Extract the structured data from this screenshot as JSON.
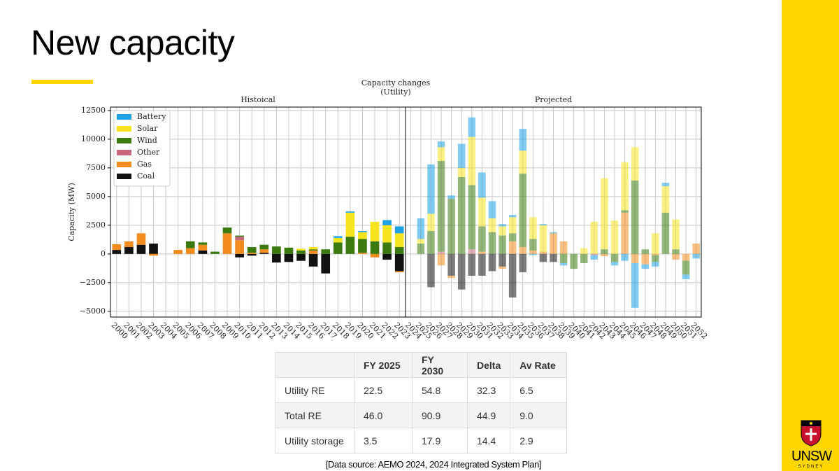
{
  "title": "New capacity",
  "chart_data": [
    {
      "type": "bar",
      "stacked": true,
      "suptitle": [
        "Capacity changes",
        "(Utility)"
      ],
      "title": "Histoical",
      "ylabel": "Capacity (MW)",
      "categories": [
        "2000",
        "2001",
        "2002",
        "2003",
        "2004",
        "2005",
        "2006",
        "2007",
        "2008",
        "2009",
        "2010",
        "2011",
        "2012",
        "2013",
        "2014",
        "2015",
        "2016",
        "2017",
        "2018",
        "2019",
        "2020",
        "2021",
        "2022",
        "2023"
      ],
      "series": [
        {
          "name": "Battery",
          "color": "#1ba1e6",
          "values": [
            0,
            0,
            0,
            0,
            0,
            0,
            0,
            0,
            0,
            0,
            0,
            0,
            0,
            0,
            0,
            0,
            0,
            0,
            150,
            100,
            100,
            0,
            450,
            600
          ]
        },
        {
          "name": "Solar",
          "color": "#f5e41e",
          "values": [
            0,
            0,
            0,
            0,
            0,
            0,
            0,
            0,
            0,
            0,
            0,
            0,
            0,
            0,
            0,
            150,
            200,
            0,
            400,
            2100,
            600,
            1700,
            1500,
            1200
          ]
        },
        {
          "name": "Wind",
          "color": "#3b7a0f",
          "values": [
            0,
            0,
            0,
            0,
            0,
            0,
            600,
            200,
            200,
            500,
            100,
            500,
            400,
            650,
            550,
            300,
            100,
            400,
            1000,
            1500,
            1200,
            1100,
            1000,
            600
          ]
        },
        {
          "name": "Other",
          "color": "#c9687a",
          "values": [
            0,
            0,
            0,
            0,
            0,
            0,
            0,
            0,
            0,
            0,
            300,
            0,
            0,
            0,
            0,
            0,
            0,
            0,
            0,
            0,
            0,
            0,
            0,
            0
          ]
        },
        {
          "name": "Gas",
          "color": "#f28c1e",
          "values": [
            500,
            500,
            1000,
            -150,
            0,
            350,
            500,
            500,
            0,
            1800,
            1200,
            100,
            300,
            0,
            0,
            0,
            300,
            0,
            0,
            0,
            100,
            -300,
            0,
            -100
          ]
        },
        {
          "name": "Coal",
          "color": "#111111",
          "values": [
            350,
            600,
            800,
            900,
            0,
            0,
            0,
            300,
            0,
            0,
            -300,
            -150,
            100,
            -750,
            -700,
            -600,
            -1100,
            -1700,
            0,
            0,
            0,
            0,
            -500,
            -1500
          ]
        }
      ],
      "opacity": 1,
      "ylim": [
        -5500,
        12800
      ],
      "yticks": [
        {
          "value": -5000,
          "label": "−5000"
        },
        {
          "value": -2500,
          "label": "−2500"
        },
        0,
        2500,
        5000,
        7500,
        10000,
        12500
      ],
      "grid": true,
      "legend": "upper left"
    },
    {
      "type": "bar",
      "stacked": true,
      "title": "Projected",
      "sharey": true,
      "categories": [
        "2024",
        "2025",
        "2026",
        "2027",
        "2028",
        "2029",
        "2030",
        "2031",
        "2032",
        "2033",
        "2034",
        "2035",
        "2036",
        "2037",
        "2038",
        "2039",
        "2040",
        "2041",
        "2042",
        "2043",
        "2044",
        "2045",
        "2046",
        "2047",
        "2048",
        "2049",
        "2050",
        "2051",
        "2052"
      ],
      "series": [
        {
          "color": "#1ba1e6",
          "values": [
            0,
            1800,
            4300,
            500,
            300,
            2100,
            1700,
            2200,
            1500,
            200,
            200,
            1900,
            -100,
            100,
            100,
            -200,
            0,
            0,
            -400,
            0,
            -300,
            -600,
            -3900,
            -400,
            -400,
            300,
            0,
            -400,
            -400
          ]
        },
        {
          "color": "#f5e41e",
          "values": [
            0,
            400,
            1500,
            1200,
            0,
            800,
            4200,
            2500,
            1200,
            800,
            1400,
            2000,
            1900,
            2300,
            0,
            0,
            0,
            500,
            2800,
            6200,
            2900,
            4200,
            2900,
            0,
            1800,
            2300,
            2600,
            0,
            0
          ]
        },
        {
          "color": "#3b7a0f",
          "values": [
            0,
            900,
            2000,
            7900,
            4800,
            6700,
            5600,
            2200,
            1900,
            1600,
            700,
            6400,
            1000,
            0,
            0,
            -800,
            -1300,
            -800,
            0,
            400,
            -700,
            200,
            6400,
            400,
            -600,
            3600,
            400,
            -1200,
            0
          ]
        },
        {
          "color": "#c9687a",
          "values": [
            0,
            0,
            0,
            200,
            0,
            0,
            400,
            0,
            0,
            0,
            0,
            0,
            0,
            0,
            0,
            0,
            0,
            0,
            -100,
            0,
            0,
            0,
            0,
            0,
            0,
            0,
            0,
            0,
            0
          ]
        },
        {
          "color": "#f28c1e",
          "values": [
            0,
            0,
            0,
            -1000,
            -200,
            0,
            0,
            200,
            0,
            -200,
            1100,
            600,
            300,
            200,
            1800,
            1100,
            0,
            0,
            0,
            -200,
            0,
            3600,
            -800,
            -900,
            -100,
            0,
            -500,
            -600,
            900
          ]
        },
        {
          "color": "#111111",
          "values": [
            0,
            0,
            -2900,
            0,
            -1900,
            -3100,
            -1900,
            -1900,
            -1500,
            -1100,
            -3800,
            -1600,
            0,
            -700,
            -700,
            0,
            0,
            0,
            0,
            0,
            0,
            0,
            0,
            0,
            0,
            0,
            0,
            0,
            0
          ]
        }
      ],
      "opacity": 0.55,
      "ylim": [
        -5500,
        12800
      ],
      "grid": true
    }
  ],
  "table": {
    "columns": [
      "FY 2025",
      "FY 2030",
      "Delta",
      "Av Rate"
    ],
    "rows": [
      [
        "Utility RE",
        "22.5",
        "54.8",
        "32.3",
        "6.5"
      ],
      [
        "Total RE",
        "46.0",
        "90.9",
        "44.9",
        "9.0"
      ],
      [
        "Utility storage",
        "3.5",
        "17.9",
        "14.4",
        "2.9"
      ]
    ]
  },
  "source": "[Data source: AEMO 2024, 2024 Integrated System Plan]",
  "logo": {
    "name": "UNSW",
    "place": "SYDNEY"
  }
}
